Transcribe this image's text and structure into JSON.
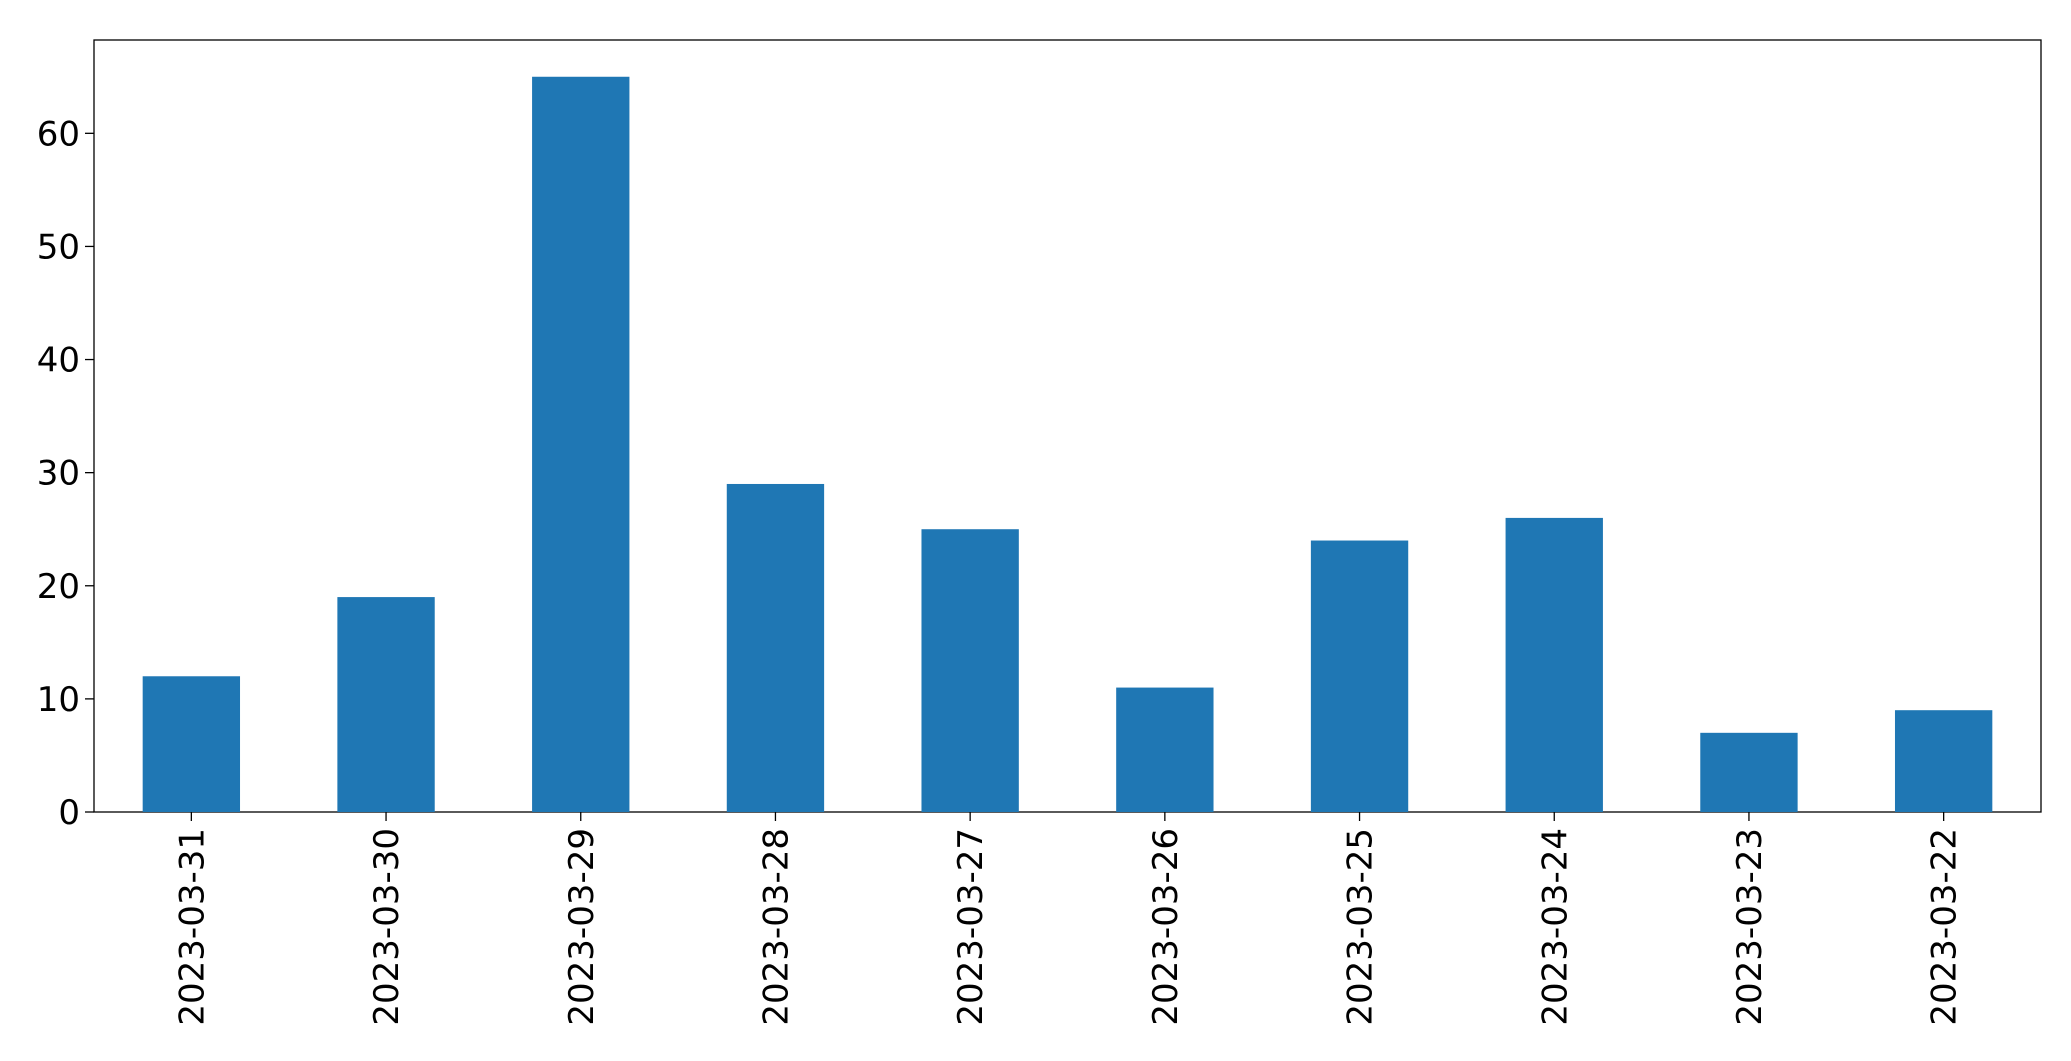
{
  "chart_data": {
    "type": "bar",
    "categories": [
      "2023-03-31",
      "2023-03-30",
      "2023-03-29",
      "2023-03-28",
      "2023-03-27",
      "2023-03-26",
      "2023-03-25",
      "2023-03-24",
      "2023-03-23",
      "2023-03-22"
    ],
    "values": [
      12,
      19,
      65,
      29,
      25,
      11,
      24,
      26,
      7,
      9
    ],
    "color": "#1f77b4",
    "ylim": [
      0,
      68.25
    ],
    "yticks": [
      0,
      10,
      20,
      30,
      40,
      50,
      60
    ],
    "grid": false
  }
}
